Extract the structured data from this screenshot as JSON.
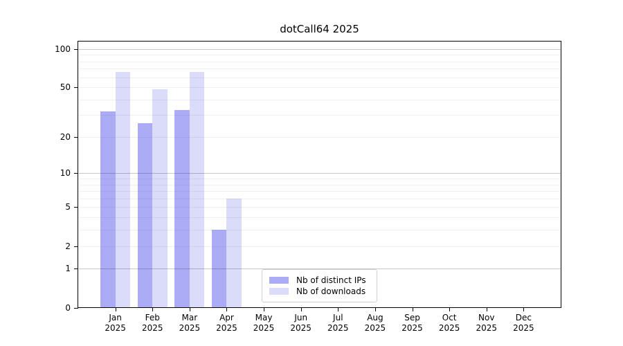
{
  "title": "dotCall64 2025",
  "chart_data": {
    "type": "bar",
    "title": "dotCall64 2025",
    "categories": [
      "Jan 2025",
      "Feb 2025",
      "Mar 2025",
      "Apr 2025",
      "May 2025",
      "Jun 2025",
      "Jul 2025",
      "Aug 2025",
      "Sep 2025",
      "Oct 2025",
      "Nov 2025",
      "Dec 2025"
    ],
    "series": [
      {
        "name": "Nb of distinct IPs",
        "color": "#acacf6",
        "values": [
          32,
          26,
          33,
          3,
          0,
          0,
          0,
          0,
          0,
          0,
          0,
          0
        ]
      },
      {
        "name": "Nb of downloads",
        "color": "#dbdbfa",
        "values": [
          66,
          48,
          66,
          6,
          0,
          0,
          0,
          0,
          0,
          0,
          0,
          0
        ]
      }
    ],
    "xlabel": "",
    "ylabel": "",
    "yscale": "log1p",
    "ylim": [
      0,
      115
    ],
    "yticks": [
      0,
      1,
      2,
      5,
      10,
      20,
      50,
      100
    ],
    "gridlines_major": [
      1,
      10,
      100
    ],
    "gridlines_minor": [
      2,
      3,
      4,
      5,
      6,
      7,
      8,
      9,
      20,
      30,
      40,
      50,
      60,
      70,
      80,
      90
    ],
    "grid": "horizontal",
    "legend_position": "lower center"
  },
  "colors": {
    "distinct_ips_bar": "#acacf6",
    "downloads_bar": "#dbdbfa",
    "spine": "#000000",
    "legend_border": "#cfcfcf"
  }
}
